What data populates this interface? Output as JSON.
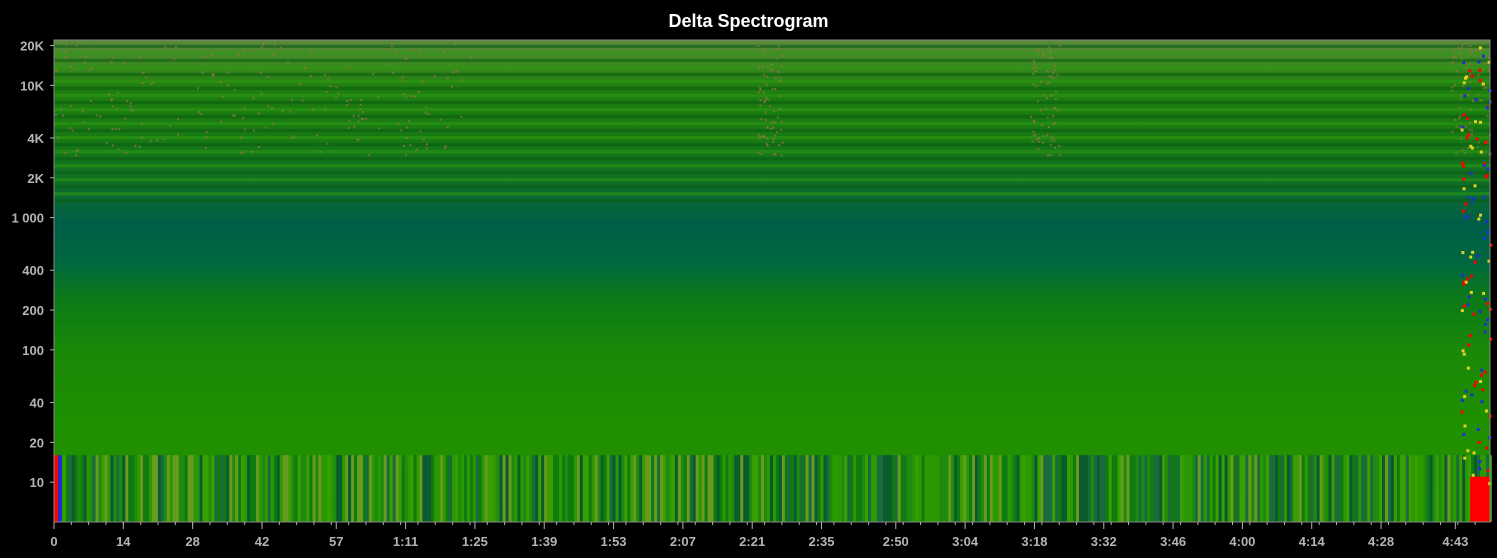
{
  "chart_data": {
    "type": "heatmap",
    "title": "Delta Spectrogram",
    "xlabel": "",
    "ylabel": "",
    "x_ticks": [
      "0",
      "14",
      "28",
      "42",
      "57",
      "1:11",
      "1:25",
      "1:39",
      "1:53",
      "2:07",
      "2:21",
      "2:35",
      "2:50",
      "3:04",
      "3:18",
      "3:32",
      "3:46",
      "4:00",
      "4:14",
      "4:28",
      "4:43"
    ],
    "x_tick_seconds": [
      0,
      14,
      28,
      42,
      57,
      71,
      85,
      99,
      113,
      127,
      141,
      155,
      170,
      184,
      198,
      212,
      226,
      240,
      254,
      268,
      283
    ],
    "x_max_seconds": 290,
    "y_scale": "log",
    "y_ticks": [
      {
        "label": "20K",
        "value": 20000
      },
      {
        "label": "10K",
        "value": 10000
      },
      {
        "label": "4K",
        "value": 4000
      },
      {
        "label": "2K",
        "value": 2000
      },
      {
        "label": "1 000",
        "value": 1000
      },
      {
        "label": "400",
        "value": 400
      },
      {
        "label": "200",
        "value": 200
      },
      {
        "label": "100",
        "value": 100
      },
      {
        "label": "40",
        "value": 40
      },
      {
        "label": "20",
        "value": 20
      },
      {
        "label": "10",
        "value": 10
      }
    ],
    "ylim": [
      5,
      22000
    ],
    "colors": {
      "background": "#000000",
      "dominant": "#1f8a00",
      "mid_band": "#00604a",
      "high_band_light": "#2d9a10",
      "high_band_dark": "#0a5a12",
      "noise": "#a07050",
      "edge_red": "#ff0000",
      "edge_blue": "#2030d0",
      "edge_yellow": "#e0d020"
    }
  }
}
